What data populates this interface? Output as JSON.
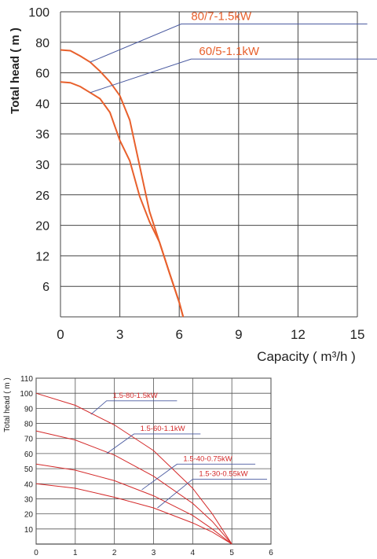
{
  "colors": {
    "top_curve": "#e8602c",
    "bottom_curve": "#d42a2a",
    "grid": "#333333",
    "text": "#222222"
  },
  "chart_data": [
    {
      "type": "line",
      "xlabel": "Capacity ( m³/h )",
      "ylabel": "Total head ( m )",
      "x_ticks": [
        "0",
        "3",
        "6",
        "9",
        "12",
        "15"
      ],
      "y_ticks": [
        "100",
        "80",
        "60",
        "40",
        "36",
        "30",
        "26",
        "20",
        "12",
        "6"
      ],
      "grid": true,
      "series": [
        {
          "name": "80/7-1.5kW",
          "x": [
            0,
            0.5,
            1,
            1.5,
            2,
            2.5,
            3,
            3.5,
            4,
            4.5,
            5,
            5.5,
            6,
            6.2
          ],
          "y": [
            76,
            75.5,
            72,
            68,
            62,
            55,
            46,
            38,
            30,
            23,
            16,
            9,
            3,
            0
          ]
        },
        {
          "name": "60/5-1.1kW",
          "x": [
            0,
            0.5,
            1,
            1.5,
            2,
            2.5,
            3,
            3.5,
            4,
            4.5,
            5,
            5.5,
            6,
            6.2
          ],
          "y": [
            55,
            54.5,
            52,
            48,
            44,
            39,
            35,
            31,
            26,
            21,
            16,
            9,
            3,
            0
          ]
        }
      ]
    },
    {
      "type": "line",
      "ylabel": "Total head ( m )",
      "xlim": [
        0,
        6
      ],
      "ylim": [
        0,
        110
      ],
      "x_ticks": [
        "0",
        "1",
        "2",
        "3",
        "4",
        "5",
        "6"
      ],
      "y_ticks": [
        "110",
        "100",
        "90",
        "80",
        "70",
        "60",
        "50",
        "40",
        "30",
        "20",
        "10"
      ],
      "grid": true,
      "series": [
        {
          "name": "1.5-80-1.5kW",
          "x": [
            0,
            1,
            2,
            3,
            4,
            4.5,
            5
          ],
          "y": [
            100,
            92,
            79,
            62,
            37,
            20,
            0
          ]
        },
        {
          "name": "1.5-60-1.1kW",
          "x": [
            0,
            1,
            2,
            3,
            4,
            4.5,
            5
          ],
          "y": [
            75,
            69,
            59,
            45,
            27,
            15,
            0
          ]
        },
        {
          "name": "1.5-40-0.75kW",
          "x": [
            0,
            1,
            2,
            3,
            4,
            4.5,
            5
          ],
          "y": [
            53,
            49,
            42,
            32,
            19,
            10,
            0
          ]
        },
        {
          "name": "1.5-30-0.55kW",
          "x": [
            0,
            1,
            2,
            3,
            4,
            4.5,
            5
          ],
          "y": [
            40,
            37,
            31,
            24,
            14,
            8,
            0
          ]
        }
      ]
    }
  ]
}
